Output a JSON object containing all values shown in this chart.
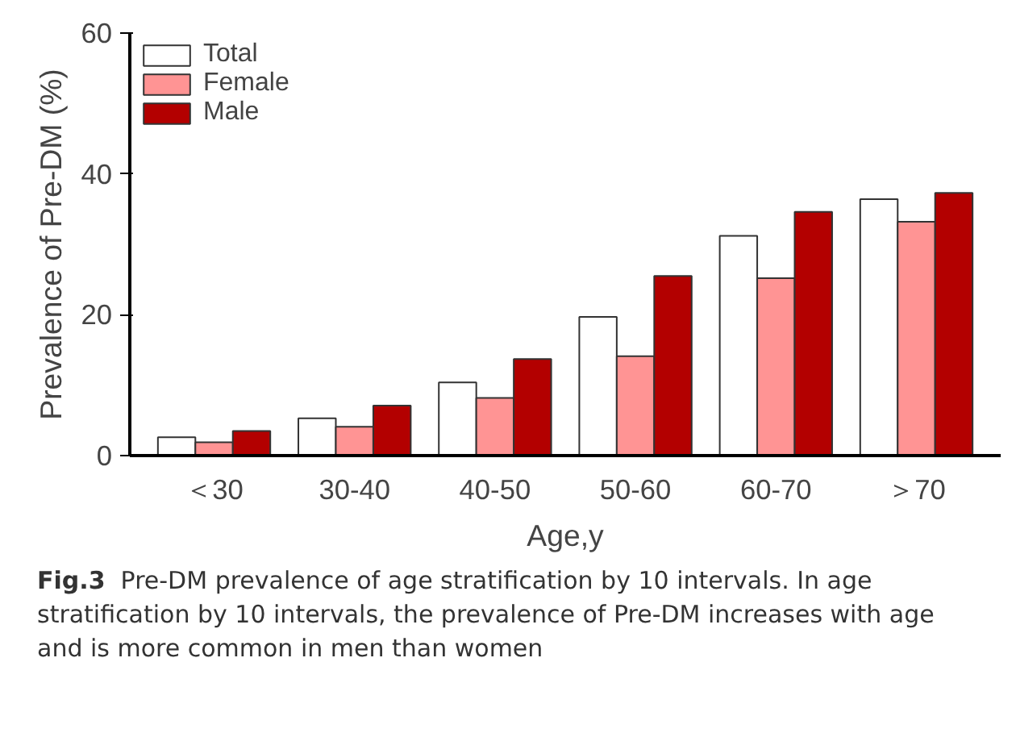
{
  "chart_data": {
    "type": "bar",
    "xlabel": "Age,y",
    "ylabel": "Prevalence of Pre-DM (%)",
    "categories": [
      "＜30",
      "30-40",
      "40-50",
      "50-60",
      "60-70",
      "＞70"
    ],
    "series": [
      {
        "name": "Total",
        "color": "#ffffff",
        "values": [
          2.6,
          5.3,
          10.4,
          19.7,
          31.2,
          36.4
        ]
      },
      {
        "name": "Female",
        "color": "#ff9494",
        "values": [
          1.9,
          4.1,
          8.2,
          14.1,
          25.2,
          33.2
        ]
      },
      {
        "name": "Male",
        "color": "#b30000",
        "values": [
          3.5,
          7.1,
          13.7,
          25.5,
          34.6,
          37.3
        ]
      }
    ],
    "ylim": [
      0,
      60
    ],
    "yticks": [
      0,
      20,
      40,
      60
    ],
    "grid": false,
    "legend": "top left",
    "annotations": [
      "Fig.3",
      "Pre-DM prevalence of age stratification by 10 intervals. In age stratification by 10 intervals, the prevalence of Pre-DM increases with age and is more common in men than women"
    ]
  }
}
